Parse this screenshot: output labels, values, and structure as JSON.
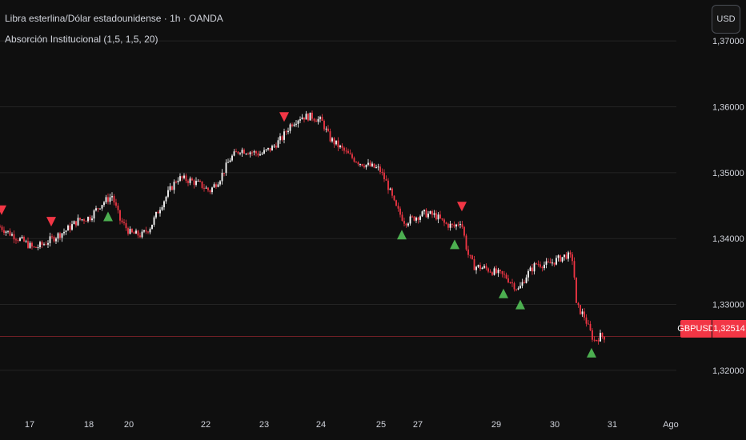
{
  "header": {
    "title": "Libra esterlina/Dólar estadounidense · 1h · OANDA",
    "indicator": "Absorción Institucional (1,5, 1,5, 20)",
    "currency_button": "USD"
  },
  "last_price": {
    "symbol": "GBPUSD",
    "value": "1,32514"
  },
  "colors": {
    "background": "#0f0f0f",
    "grid": "#242424",
    "up_candle": "#ffffff",
    "down_candle": "#f23645",
    "sell_signal": "#f23645",
    "buy_signal": "#4caf50",
    "price_line": "#f23645"
  },
  "chart_data": {
    "type": "candlestick",
    "title": "Libra esterlina/Dólar estadounidense · 1h · OANDA",
    "ylim": [
      1.3155,
      1.3762
    ],
    "y_ticks": [
      {
        "value": 1.37,
        "label": "1,37000"
      },
      {
        "value": 1.36,
        "label": "1,36000"
      },
      {
        "value": 1.35,
        "label": "1,35000"
      },
      {
        "value": 1.34,
        "label": "1,34000"
      },
      {
        "value": 1.33,
        "label": "1,33000"
      },
      {
        "value": 1.32,
        "label": "1,32000"
      }
    ],
    "x_range": [
      0,
      932
    ],
    "x_ticks": [
      {
        "x": 37,
        "label": "17"
      },
      {
        "x": 111,
        "label": "18"
      },
      {
        "x": 161,
        "label": "20"
      },
      {
        "x": 257,
        "label": "22"
      },
      {
        "x": 330,
        "label": "23"
      },
      {
        "x": 401,
        "label": "24"
      },
      {
        "x": 476,
        "label": "25"
      },
      {
        "x": 522,
        "label": "27"
      },
      {
        "x": 620,
        "label": "29"
      },
      {
        "x": 693,
        "label": "30"
      },
      {
        "x": 765,
        "label": "31"
      },
      {
        "x": 838,
        "label": "Ago"
      }
    ],
    "price_path": [
      [
        0,
        1.3418
      ],
      [
        12,
        1.3408
      ],
      [
        30,
        1.3395
      ],
      [
        42,
        1.3385
      ],
      [
        55,
        1.3392
      ],
      [
        68,
        1.3402
      ],
      [
        82,
        1.3412
      ],
      [
        98,
        1.3428
      ],
      [
        112,
        1.3432
      ],
      [
        126,
        1.3452
      ],
      [
        140,
        1.3465
      ],
      [
        150,
        1.3428
      ],
      [
        163,
        1.3408
      ],
      [
        177,
        1.3405
      ],
      [
        188,
        1.3418
      ],
      [
        200,
        1.3448
      ],
      [
        213,
        1.3475
      ],
      [
        222,
        1.3492
      ],
      [
        238,
        1.3488
      ],
      [
        250,
        1.3482
      ],
      [
        262,
        1.3472
      ],
      [
        275,
        1.3492
      ],
      [
        288,
        1.3522
      ],
      [
        300,
        1.3535
      ],
      [
        312,
        1.3532
      ],
      [
        326,
        1.3528
      ],
      [
        340,
        1.3538
      ],
      [
        352,
        1.3552
      ],
      [
        364,
        1.3575
      ],
      [
        376,
        1.3585
      ],
      [
        390,
        1.3585
      ],
      [
        402,
        1.3578
      ],
      [
        412,
        1.3552
      ],
      [
        425,
        1.3538
      ],
      [
        437,
        1.3525
      ],
      [
        450,
        1.3515
      ],
      [
        462,
        1.351
      ],
      [
        474,
        1.3505
      ],
      [
        484,
        1.3482
      ],
      [
        494,
        1.3448
      ],
      [
        506,
        1.3425
      ],
      [
        518,
        1.3432
      ],
      [
        530,
        1.3438
      ],
      [
        544,
        1.3435
      ],
      [
        556,
        1.3422
      ],
      [
        568,
        1.3418
      ],
      [
        576,
        1.3428
      ],
      [
        584,
        1.3378
      ],
      [
        592,
        1.3358
      ],
      [
        606,
        1.3355
      ],
      [
        620,
        1.3348
      ],
      [
        632,
        1.3342
      ],
      [
        648,
        1.3322
      ],
      [
        658,
        1.3345
      ],
      [
        670,
        1.3362
      ],
      [
        684,
        1.336
      ],
      [
        696,
        1.3368
      ],
      [
        708,
        1.3375
      ],
      [
        716,
        1.3368
      ],
      [
        720,
        1.3298
      ],
      [
        730,
        1.3282
      ],
      [
        736,
        1.3262
      ],
      [
        742,
        1.3245
      ],
      [
        750,
        1.3252
      ],
      [
        755,
        1.32514
      ]
    ],
    "sell_signals_x": [
      2,
      64,
      355,
      577
    ],
    "buy_signals_x": [
      135,
      502,
      568,
      629,
      650,
      739
    ],
    "last_price": 1.32514
  }
}
